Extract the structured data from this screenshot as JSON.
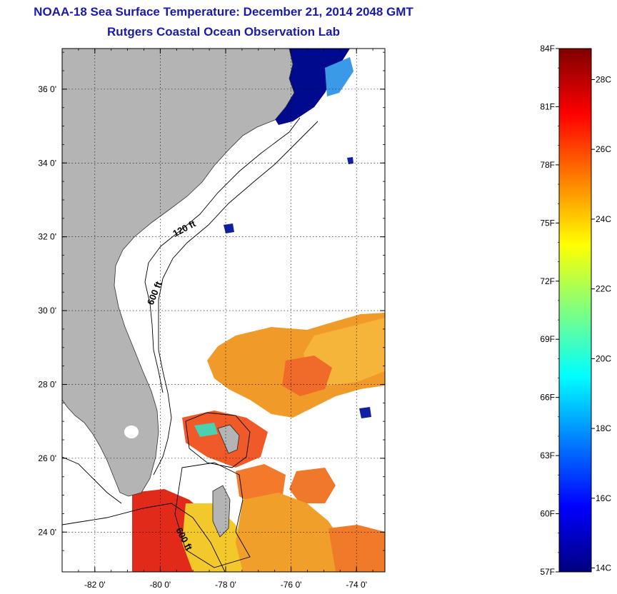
{
  "title": "NOAA-18 Sea Surface Temperature:  December 21, 2014 2048 GMT",
  "subtitle": "Rutgers Coastal Ocean Observation Lab",
  "map": {
    "lat_ticks": [
      {
        "value": 36,
        "label": "36 0'"
      },
      {
        "value": 34,
        "label": "34 0'"
      },
      {
        "value": 32,
        "label": "32 0'"
      },
      {
        "value": 30,
        "label": "30 0'"
      },
      {
        "value": 28,
        "label": "28 0'"
      },
      {
        "value": 26,
        "label": "26 0'"
      },
      {
        "value": 24,
        "label": "24 0'"
      }
    ],
    "lon_ticks": [
      {
        "value": -82,
        "label": "-82 0'"
      },
      {
        "value": -80,
        "label": "-80 0'"
      },
      {
        "value": -78,
        "label": "-78 0'"
      },
      {
        "value": -76,
        "label": "-76 0'"
      },
      {
        "value": -74,
        "label": "-74 0'"
      }
    ],
    "isobath_labels": [
      "120 ft",
      "600 ft",
      "600 ft"
    ],
    "land_color": "#b4b4b4",
    "grid": "dotted"
  },
  "colorbar": {
    "f_labels": [
      "84F",
      "81F",
      "78F",
      "75F",
      "72F",
      "69F",
      "66F",
      "63F",
      "60F",
      "57F"
    ],
    "c_labels": [
      "28C",
      "26C",
      "24C",
      "22C",
      "20C",
      "18C",
      "16C",
      "14C"
    ],
    "stops": [
      "#00007f",
      "#0000ff",
      "#007fff",
      "#00ffff",
      "#7fff7f",
      "#ffff00",
      "#ff7f00",
      "#ff0000",
      "#7f0000"
    ]
  }
}
